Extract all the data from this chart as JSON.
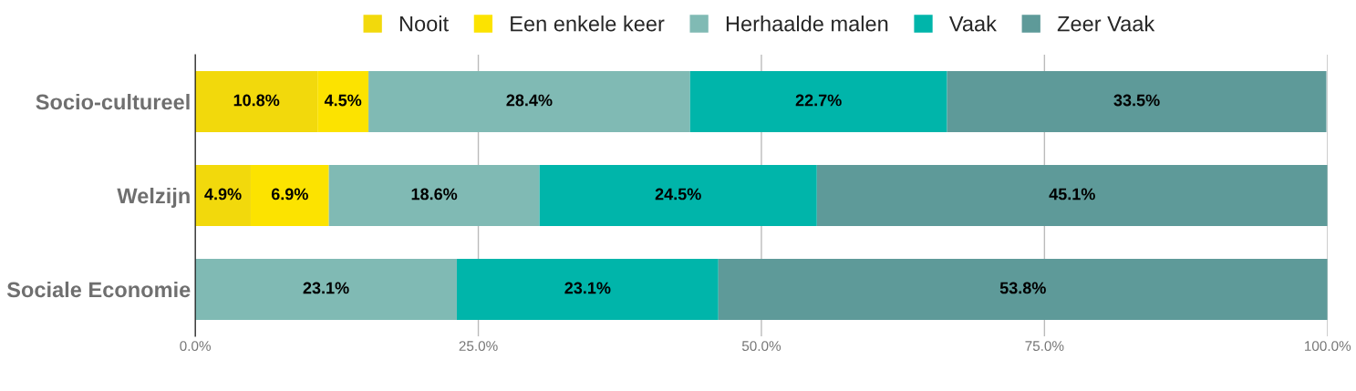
{
  "chart_data": {
    "type": "bar",
    "orientation": "horizontal",
    "stacked": true,
    "categories": [
      "Socio-cultureel",
      "Welzijn",
      "Sociale Economie"
    ],
    "series": [
      {
        "name": "Nooit",
        "color": "#f2d90c",
        "values": [
          10.8,
          4.9,
          null
        ],
        "value_labels": [
          "10.8%",
          "4.9%",
          null
        ]
      },
      {
        "name": "Een enkele keer",
        "color": "#fce300",
        "values": [
          4.5,
          6.9,
          null
        ],
        "value_labels": [
          "4.5%",
          "6.9%",
          null
        ]
      },
      {
        "name": "Herhaalde malen",
        "color": "#80bab4",
        "values": [
          28.4,
          18.6,
          23.1
        ],
        "value_labels": [
          "28.4%",
          "18.6%",
          "23.1%"
        ]
      },
      {
        "name": "Vaak",
        "color": "#00b5aa",
        "values": [
          22.7,
          24.5,
          23.1
        ],
        "value_labels": [
          "22.7%",
          "24.5%",
          "23.1%"
        ]
      },
      {
        "name": "Zeer Vaak",
        "color": "#5e9a99",
        "values": [
          33.5,
          45.1,
          53.8
        ],
        "value_labels": [
          "33.5%",
          "45.1%",
          "53.8%"
        ]
      }
    ],
    "xlim": [
      0,
      100
    ],
    "xticks": [
      {
        "value": 0,
        "label": "0.0%"
      },
      {
        "value": 25,
        "label": "25.0%"
      },
      {
        "value": 50,
        "label": "50.0%"
      },
      {
        "value": 75,
        "label": "75.0%"
      },
      {
        "value": 100,
        "label": "100.0%"
      }
    ],
    "grid": "x",
    "legend": "top"
  }
}
